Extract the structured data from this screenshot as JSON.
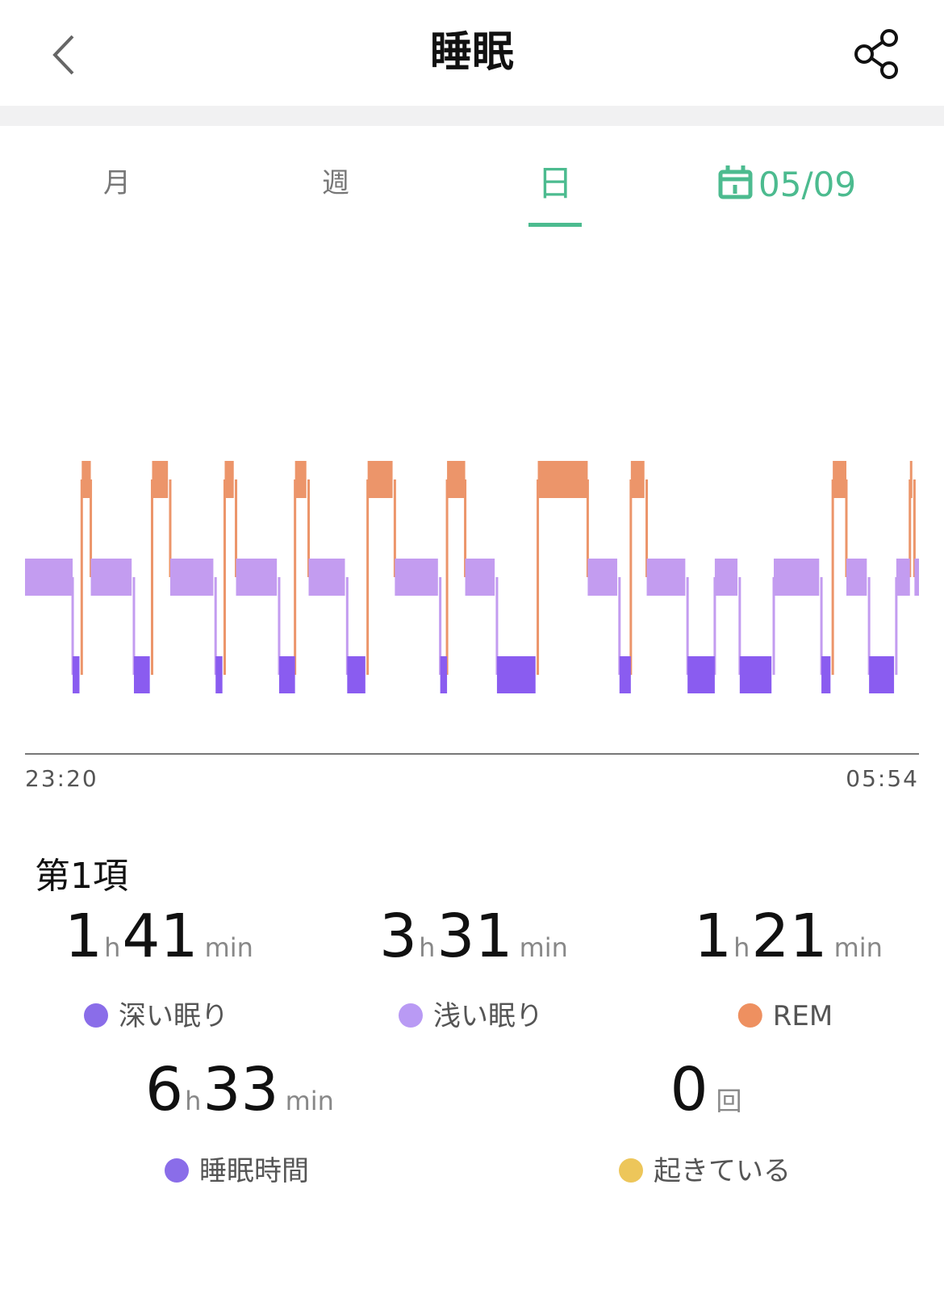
{
  "header": {
    "title": "睡眠"
  },
  "tabs": {
    "items": [
      "月",
      "週",
      "日"
    ],
    "active": 2,
    "date": "05/09"
  },
  "chart_data": {
    "type": "hypnogram",
    "xlim": [
      0,
      394
    ],
    "x_labels": [
      "23:20",
      "05:54"
    ],
    "series": [
      {
        "name": "深い眠り",
        "color": "#8a5cf0",
        "segments": [
          [
            21,
            24
          ],
          [
            48,
            55
          ],
          [
            84,
            87
          ],
          [
            112,
            119
          ],
          [
            142,
            150
          ],
          [
            183,
            186
          ],
          [
            208,
            225
          ],
          [
            262,
            267
          ],
          [
            292,
            304
          ],
          [
            315,
            329
          ],
          [
            351,
            355
          ],
          [
            372,
            383
          ]
        ]
      },
      {
        "name": "浅い眠り",
        "color": "#c39cf0",
        "segments": [
          [
            0,
            21
          ],
          [
            29,
            47
          ],
          [
            64,
            83
          ],
          [
            93,
            111
          ],
          [
            125,
            141
          ],
          [
            163,
            182
          ],
          [
            194,
            207
          ],
          [
            248,
            261
          ],
          [
            274,
            291
          ],
          [
            304,
            314
          ],
          [
            330,
            350
          ],
          [
            362,
            371
          ],
          [
            384,
            390
          ],
          [
            392,
            394
          ]
        ]
      },
      {
        "name": "REM",
        "color": "#ec956a",
        "segments": [
          [
            25,
            29
          ],
          [
            56,
            63
          ],
          [
            88,
            92
          ],
          [
            119,
            124
          ],
          [
            151,
            162
          ],
          [
            186,
            194
          ],
          [
            226,
            248
          ],
          [
            267,
            273
          ],
          [
            356,
            362
          ],
          [
            390,
            391
          ]
        ]
      }
    ]
  },
  "summary": {
    "title": "第1項",
    "stats": [
      {
        "hours": 1,
        "hours_unit": "h",
        "minutes": 41,
        "minutes_unit": "min",
        "dot": "#8a6de9"
      },
      {
        "hours": 3,
        "hours_unit": "h",
        "minutes": 31,
        "minutes_unit": "min",
        "dot": "#b99af4"
      },
      {
        "hours": 1,
        "hours_unit": "h",
        "minutes": 21,
        "minutes_unit": "min",
        "dot": "#ee9060"
      }
    ],
    "total": {
      "hours": 6,
      "hours_unit": "h",
      "minutes": 33,
      "minutes_unit": "min",
      "label": "睡眠時間",
      "dot": "#8a6de9"
    },
    "awake": {
      "count": 0,
      "unit": "回",
      "label": "起きている",
      "dot": "#edc65a"
    }
  }
}
